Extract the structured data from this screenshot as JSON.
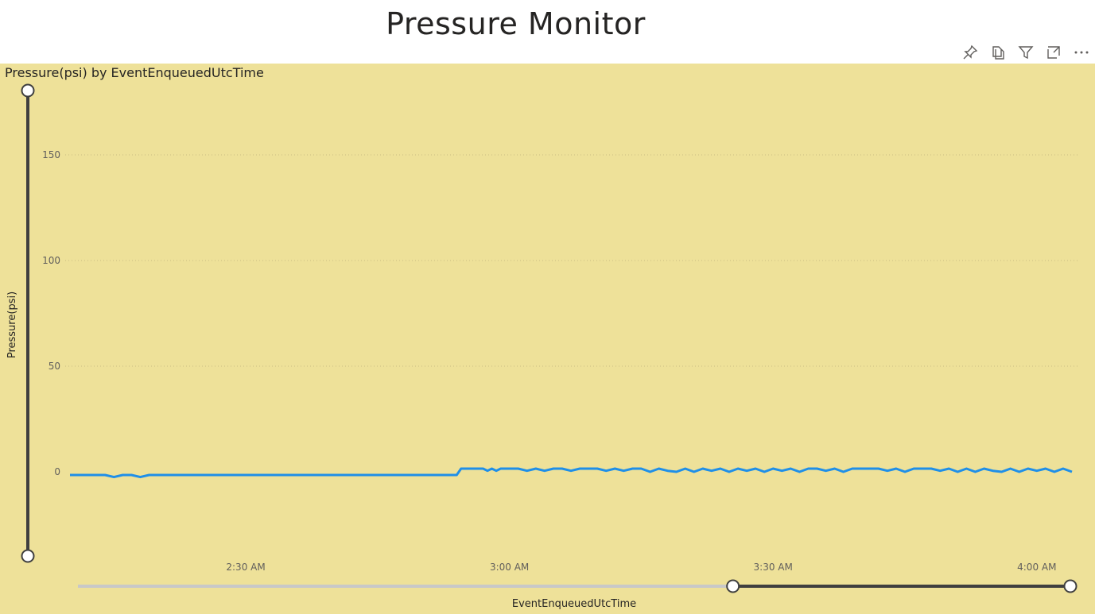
{
  "page": {
    "title": "Pressure Monitor"
  },
  "toolbar": {
    "icons": [
      "pin-icon",
      "copy-icon",
      "filter-icon",
      "focus-mode-icon",
      "more-options-icon"
    ]
  },
  "visual": {
    "title": "Pressure(psi) by EventEnqueuedUtcTime"
  },
  "colors": {
    "background": "#EEE199",
    "line": "#1F8FE8",
    "slider": "#3f3f3f",
    "slider_inactive": "#c8c8c8"
  },
  "slicers": {
    "x": {
      "selected_start_fraction": 0.66,
      "selected_end_fraction": 1.0
    },
    "y": {
      "selected_start_fraction": 0.0,
      "selected_end_fraction": 1.0
    }
  },
  "chart_data": {
    "type": "line",
    "title": "Pressure(psi) by EventEnqueuedUtcTime",
    "xlabel": "EventEnqueuedUtcTime",
    "ylabel": "Pressure(psi)",
    "ylim": [
      -40,
      180
    ],
    "yticks": [
      0,
      50,
      100,
      150
    ],
    "xlim": [
      "02:10",
      "04:04"
    ],
    "xticks": [
      {
        "value": "02:30",
        "label": "2:30 AM"
      },
      {
        "value": "03:00",
        "label": "3:00 AM"
      },
      {
        "value": "03:30",
        "label": "3:30 AM"
      },
      {
        "value": "04:00",
        "label": "4:00 AM"
      }
    ],
    "grid": true,
    "series": [
      {
        "x": [
          "02:10",
          "02:14",
          "02:15",
          "02:16",
          "02:17",
          "02:18",
          "02:19",
          "02:40",
          "02:54",
          "02:54.5",
          "02:57",
          "02:57.5",
          "02:58",
          "02:58.5",
          "02:59",
          "03:00",
          "03:01",
          "03:02",
          "03:03",
          "03:04",
          "03:05",
          "03:06",
          "03:07",
          "03:08",
          "03:09",
          "03:10",
          "03:11",
          "03:12",
          "03:13",
          "03:14",
          "03:15",
          "03:16",
          "03:17",
          "03:18",
          "03:19",
          "03:20",
          "03:21",
          "03:22",
          "03:23",
          "03:24",
          "03:25",
          "03:26",
          "03:27",
          "03:28",
          "03:29",
          "03:30",
          "03:31",
          "03:32",
          "03:33",
          "03:34",
          "03:35",
          "03:36",
          "03:37",
          "03:38",
          "03:39",
          "03:40",
          "03:41",
          "03:42",
          "03:43",
          "03:44",
          "03:45",
          "03:46",
          "03:47",
          "03:48",
          "03:49",
          "03:50",
          "03:51",
          "03:52",
          "03:53",
          "03:54",
          "03:55",
          "03:56",
          "03:57",
          "03:58",
          "03:59",
          "04:00",
          "04:01",
          "04:02",
          "04:03",
          "04:04"
        ],
        "values": [
          -1.5,
          -1.5,
          -2.5,
          -1.5,
          -1.5,
          -2.5,
          -1.5,
          -1.5,
          -1.5,
          1.5,
          1.5,
          0.5,
          1.5,
          0.5,
          1.5,
          1.5,
          1.5,
          0.5,
          1.5,
          0.5,
          1.5,
          1.5,
          0.5,
          1.5,
          1.5,
          1.5,
          0.5,
          1.5,
          0.5,
          1.5,
          1.5,
          0,
          1.5,
          0.5,
          0,
          1.5,
          0,
          1.5,
          0.5,
          1.5,
          0,
          1.5,
          0.5,
          1.5,
          0,
          1.5,
          0.5,
          1.5,
          0,
          1.5,
          1.5,
          0.5,
          1.5,
          0,
          1.5,
          1.5,
          1.5,
          1.5,
          0.5,
          1.5,
          0,
          1.5,
          1.5,
          1.5,
          0.5,
          1.5,
          0,
          1.5,
          0,
          1.5,
          0.5,
          0,
          1.5,
          0,
          1.5,
          0.5,
          1.5,
          0,
          1.5,
          0
        ]
      }
    ]
  }
}
